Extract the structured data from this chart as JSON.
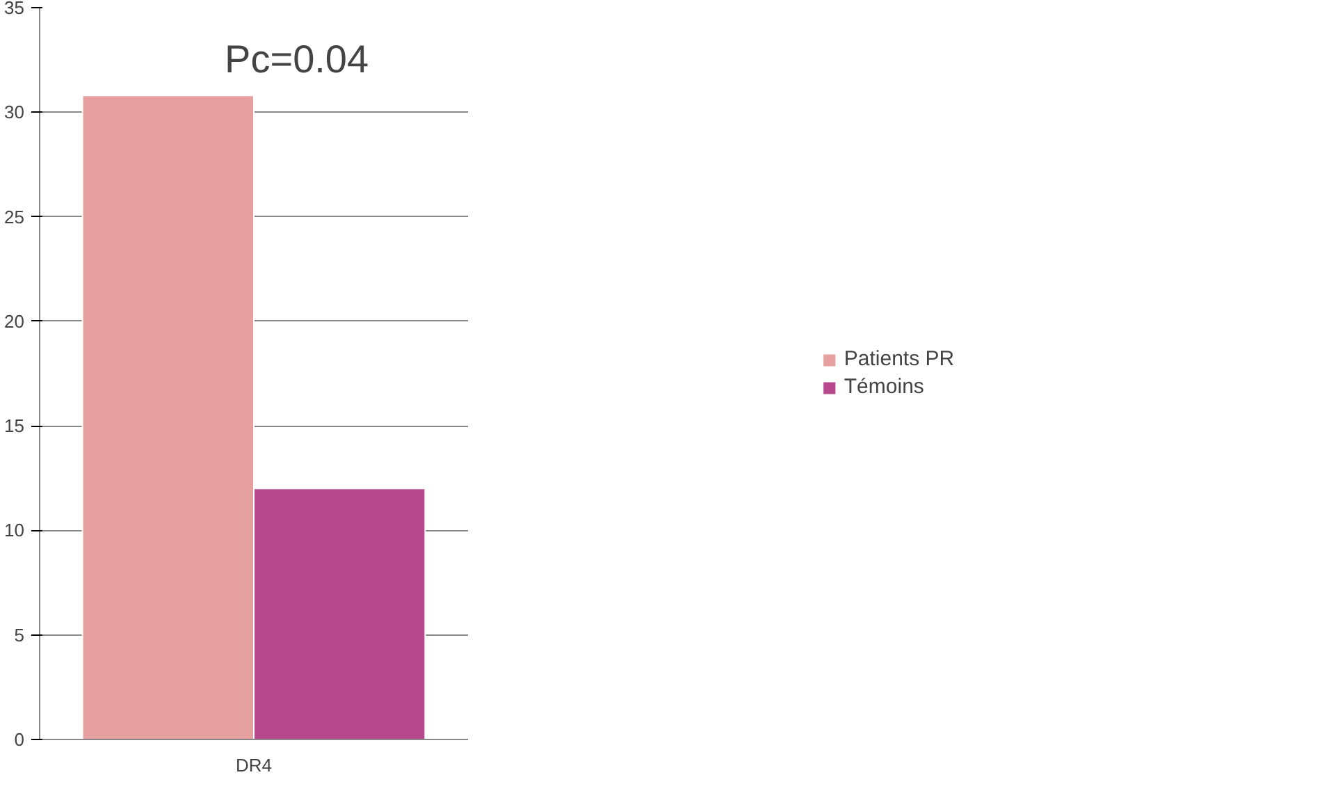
{
  "chart_data": {
    "type": "bar",
    "categories": [
      "DR4"
    ],
    "series": [
      {
        "name": "Patients PR",
        "color": "#e6a0a0",
        "values": [
          30.8
        ]
      },
      {
        "name": "Témoins",
        "color": "#b8488e",
        "values": [
          12
        ]
      }
    ],
    "ylim": [
      0,
      35
    ],
    "yticks": [
      0,
      5,
      10,
      15,
      20,
      25,
      30,
      35
    ],
    "grid": "y",
    "legend": "right",
    "annotations": [
      "Pc=0.04"
    ]
  }
}
